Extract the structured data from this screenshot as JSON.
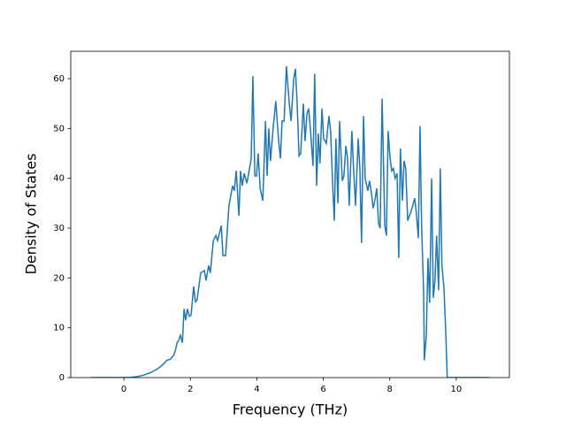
{
  "chart_data": {
    "type": "line",
    "xlabel": "Frequency (THz)",
    "ylabel": "Density of States",
    "xlim": [
      -1.6,
      11.6
    ],
    "xticks": [
      0,
      2,
      4,
      6,
      8,
      10
    ],
    "ylim": [
      0,
      65.5
    ],
    "yticks": [
      0,
      10,
      20,
      30,
      40,
      50,
      60
    ],
    "grid": false,
    "series": [
      {
        "color": "#1f77b4",
        "x": [
          -1,
          -0.5,
          0,
          0.2,
          0.4,
          0.6,
          0.8,
          1.0,
          1.1,
          1.2,
          1.3,
          1.4,
          1.5,
          1.55,
          1.6,
          1.65,
          1.7,
          1.76,
          1.81,
          1.86,
          1.91,
          1.97,
          2.02,
          2.1,
          2.15,
          2.2,
          2.31,
          2.42,
          2.47,
          2.55,
          2.6,
          2.69,
          2.77,
          2.82,
          2.93,
          2.98,
          3.06,
          3.16,
          3.27,
          3.32,
          3.38,
          3.46,
          3.51,
          3.56,
          3.62,
          3.7,
          3.78,
          3.83,
          3.88,
          3.94,
          3.99,
          4.04,
          4.1,
          4.18,
          4.26,
          4.31,
          4.36,
          4.41,
          4.49,
          4.57,
          4.65,
          4.71,
          4.76,
          4.82,
          4.89,
          4.97,
          5.03,
          5.11,
          5.16,
          5.21,
          5.27,
          5.32,
          5.4,
          5.45,
          5.51,
          5.56,
          5.61,
          5.69,
          5.74,
          5.8,
          5.85,
          5.9,
          5.96,
          6.01,
          6.09,
          6.17,
          6.22,
          6.28,
          6.33,
          6.38,
          6.44,
          6.49,
          6.57,
          6.62,
          6.68,
          6.73,
          6.78,
          6.86,
          6.91,
          6.97,
          7.05,
          7.1,
          7.15,
          7.21,
          7.26,
          7.34,
          7.39,
          7.45,
          7.5,
          7.55,
          7.61,
          7.66,
          7.71,
          7.77,
          7.85,
          7.9,
          7.95,
          8.01,
          8.06,
          8.11,
          8.16,
          8.22,
          8.27,
          8.32,
          8.38,
          8.43,
          8.48,
          8.54,
          8.62,
          8.67,
          8.75,
          8.8,
          8.86,
          8.91,
          8.96,
          9.02,
          9.04,
          9.1,
          9.15,
          9.2,
          9.26,
          9.31,
          9.36,
          9.41,
          9.47,
          9.52,
          9.57,
          9.63,
          9.68,
          9.73,
          10.5,
          11
        ],
        "values": [
          0,
          0,
          0,
          0.05,
          0.2,
          0.5,
          1.0,
          1.7,
          2.2,
          2.8,
          3.5,
          3.7,
          4.5,
          5.5,
          7.0,
          7.5,
          8.5,
          7,
          13.8,
          11.5,
          13.8,
          12.3,
          12.5,
          18.3,
          15.2,
          15.5,
          21,
          21.5,
          19.5,
          22.5,
          21,
          27.5,
          28.5,
          27.5,
          30.5,
          24.5,
          24.5,
          34.5,
          38.5,
          37.5,
          41.5,
          32.5,
          41.5,
          38.5,
          41,
          39,
          42,
          44,
          60.5,
          40.5,
          40.5,
          45,
          38,
          35.5,
          51.5,
          40.5,
          50,
          43.5,
          50,
          55.5,
          48,
          44,
          51.5,
          51.5,
          62.5,
          55.5,
          51.5,
          60,
          62,
          55.5,
          44.5,
          45,
          55,
          47.5,
          53,
          54,
          50,
          42.5,
          61,
          38.5,
          49,
          43,
          54,
          48,
          47,
          52.5,
          49.5,
          39,
          31.5,
          48,
          35,
          51.5,
          39.5,
          40.5,
          46.5,
          44,
          34.5,
          49.5,
          42,
          34.5,
          48,
          42,
          27,
          52.5,
          40,
          37.5,
          39.5,
          37,
          34,
          35.5,
          38,
          31,
          30,
          56,
          30.5,
          28.5,
          49.5,
          44,
          41.5,
          42,
          40,
          41,
          24,
          46,
          35.5,
          43.5,
          42,
          31.5,
          33,
          34,
          36,
          33,
          28,
          50.5,
          30,
          17,
          3.5,
          8.5,
          24,
          15,
          40,
          16,
          19.5,
          28.5,
          17.5,
          42,
          22.5,
          18,
          10,
          0,
          0,
          0
        ]
      }
    ]
  }
}
